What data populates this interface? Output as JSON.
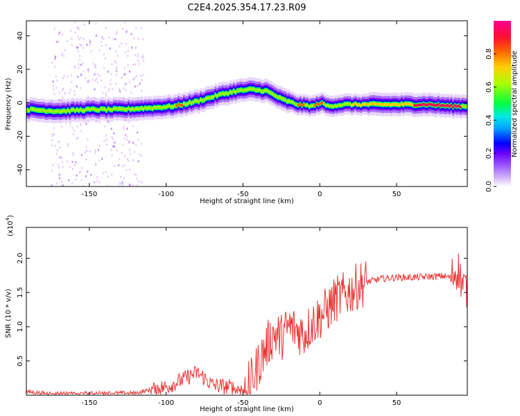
{
  "title": "C2E4.2025.354.17.23.R09",
  "chart_data": [
    {
      "type": "heatmap",
      "name": "spectrogram",
      "xlabel": "Height of straight line (km)",
      "ylabel": "Frequency (Hz)",
      "xlim": [
        -191,
        96
      ],
      "ylim": [
        -50,
        49
      ],
      "x_ticks": [
        -150,
        -100,
        -50,
        0,
        50
      ],
      "y_ticks": [
        -40,
        -20,
        0,
        20,
        40
      ],
      "colorbar": {
        "label": "Normalized spectral amplitude",
        "range": [
          0,
          1
        ],
        "ticks": [
          0.0,
          0.2,
          0.4,
          0.6,
          0.8
        ],
        "colors": [
          "#ffffff",
          "#d8b8f8",
          "#a060ff",
          "#7a00ff",
          "#0000ff",
          "#00c8ff",
          "#00ff60",
          "#a0ff00",
          "#ffd000",
          "#ff6000",
          "#ff0050",
          "#ff0090"
        ]
      },
      "ridge_center_hz": [
        {
          "x": -191,
          "y": -4
        },
        {
          "x": -170,
          "y": -5
        },
        {
          "x": -150,
          "y": -4
        },
        {
          "x": -130,
          "y": -4
        },
        {
          "x": -110,
          "y": -3
        },
        {
          "x": -95,
          "y": -2
        },
        {
          "x": -80,
          "y": 1
        },
        {
          "x": -65,
          "y": 5
        },
        {
          "x": -55,
          "y": 7
        },
        {
          "x": -45,
          "y": 8
        },
        {
          "x": -35,
          "y": 7
        },
        {
          "x": -25,
          "y": 2
        },
        {
          "x": -15,
          "y": -1
        },
        {
          "x": -5,
          "y": -2
        },
        {
          "x": 0,
          "y": 0
        },
        {
          "x": 5,
          "y": -2
        },
        {
          "x": 15,
          "y": -1
        },
        {
          "x": 30,
          "y": -1
        },
        {
          "x": 50,
          "y": -1
        },
        {
          "x": 70,
          "y": -1
        },
        {
          "x": 85,
          "y": -2
        },
        {
          "x": 96,
          "y": -2
        }
      ]
    },
    {
      "type": "line",
      "name": "snr",
      "series_name": "SNR",
      "color": "#ee3333",
      "xlabel": "Height of straight line (km)",
      "ylabel": "SNR (10 * v/v)",
      "y_scale_label": "(x10",
      "y_scale_exponent": "4",
      "xlim": [
        -191,
        96
      ],
      "ylim": [
        0,
        2.45
      ],
      "x_ticks": [
        -150,
        -100,
        -50,
        0,
        50
      ],
      "y_ticks": [
        0.5,
        1.0,
        1.5,
        2.0
      ],
      "x": [
        -191,
        -180,
        -160,
        -140,
        -120,
        -110,
        -100,
        -90,
        -80,
        -75,
        -70,
        -60,
        -50,
        -45,
        -40,
        -35,
        -30,
        -25,
        -20,
        -15,
        -10,
        -5,
        0,
        5,
        10,
        15,
        20,
        25,
        30,
        40,
        50,
        60,
        70,
        80,
        85,
        90,
        93,
        96
      ],
      "values": [
        0.05,
        0.03,
        0.02,
        0.03,
        0.03,
        0.08,
        0.12,
        0.22,
        0.33,
        0.25,
        0.15,
        0.12,
        0.08,
        0.18,
        0.45,
        0.7,
        0.9,
        0.85,
        1.0,
        0.95,
        0.9,
        1.05,
        1.15,
        1.25,
        1.4,
        1.45,
        1.52,
        1.6,
        1.65,
        1.7,
        1.72,
        1.72,
        1.73,
        1.74,
        1.72,
        1.85,
        1.6,
        1.55
      ]
    }
  ]
}
